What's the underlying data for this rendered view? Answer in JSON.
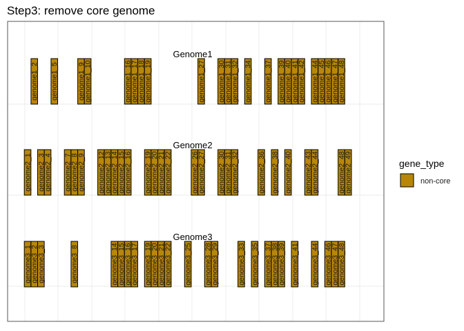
{
  "chart_data": {
    "type": "gene-arrangement",
    "title": "Step3: remove core genome",
    "fill_color": "#B8860B",
    "border_color": "#000000",
    "panel_border_color": "#555555",
    "grid_color": "#EBEBEB",
    "grid": true,
    "legend": {
      "title": "gene_type",
      "placement": "right",
      "entries": [
        {
          "label": "non-core",
          "color": "#B8860B"
        }
      ]
    },
    "tracks": [
      {
        "name": "Genome1",
        "genes": [
          {
            "label": "genome1_2",
            "pos": 2
          },
          {
            "label": "genome1_5",
            "pos": 5
          },
          {
            "label": "genome1_9",
            "pos": 9
          },
          {
            "label": "genome1_10",
            "pos": 10
          },
          {
            "label": "genome1_16",
            "pos": 16
          },
          {
            "label": "genome1_17",
            "pos": 17
          },
          {
            "label": "genome1_18",
            "pos": 18
          },
          {
            "label": "genome1_19",
            "pos": 19
          },
          {
            "label": "genome1_27",
            "pos": 27
          },
          {
            "label": "genome1_30",
            "pos": 30
          },
          {
            "label": "genome1_31",
            "pos": 31
          },
          {
            "label": "genome1_32",
            "pos": 32
          },
          {
            "label": "genome1_34",
            "pos": 34
          },
          {
            "label": "genome1_37",
            "pos": 37
          },
          {
            "label": "genome1_39",
            "pos": 39
          },
          {
            "label": "genome1_40",
            "pos": 40
          },
          {
            "label": "genome1_41",
            "pos": 41
          },
          {
            "label": "genome1_42",
            "pos": 42
          },
          {
            "label": "genome1_44",
            "pos": 44
          },
          {
            "label": "genome1_45",
            "pos": 45
          },
          {
            "label": "genome1_46",
            "pos": 46
          },
          {
            "label": "genome1_47",
            "pos": 47
          },
          {
            "label": "genome1_48",
            "pos": 48
          }
        ]
      },
      {
        "name": "Genome2",
        "genes": [
          {
            "label": "genome2_1",
            "pos": 1
          },
          {
            "label": "genome2_3",
            "pos": 3
          },
          {
            "label": "genome2_4",
            "pos": 4
          },
          {
            "label": "genome2_7",
            "pos": 7
          },
          {
            "label": "genome2_8",
            "pos": 8
          },
          {
            "label": "genome2_9",
            "pos": 9
          },
          {
            "label": "genome2_12",
            "pos": 12
          },
          {
            "label": "genome2_13",
            "pos": 13
          },
          {
            "label": "genome2_14",
            "pos": 14
          },
          {
            "label": "genome2_15",
            "pos": 15
          },
          {
            "label": "genome2_16",
            "pos": 16
          },
          {
            "label": "genome2_19",
            "pos": 19
          },
          {
            "label": "genome2_20",
            "pos": 20
          },
          {
            "label": "genome2_21",
            "pos": 21
          },
          {
            "label": "genome2_22",
            "pos": 22
          },
          {
            "label": "genome2_26",
            "pos": 26
          },
          {
            "label": "genome2_27",
            "pos": 27
          },
          {
            "label": "genome2_30",
            "pos": 30
          },
          {
            "label": "genome2_31",
            "pos": 31
          },
          {
            "label": "genome2_32",
            "pos": 32
          },
          {
            "label": "genome2_36",
            "pos": 36
          },
          {
            "label": "genome2_38",
            "pos": 38
          },
          {
            "label": "genome2_40",
            "pos": 40
          },
          {
            "label": "genome2_43",
            "pos": 43
          },
          {
            "label": "genome2_44",
            "pos": 44
          },
          {
            "label": "genome2_48",
            "pos": 48
          },
          {
            "label": "genome2_49",
            "pos": 49
          }
        ]
      },
      {
        "name": "Genome3",
        "genes": [
          {
            "label": "genome3_1",
            "pos": 1
          },
          {
            "label": "genome3_2",
            "pos": 2
          },
          {
            "label": "genome3_3",
            "pos": 3
          },
          {
            "label": "genome3_8",
            "pos": 8
          },
          {
            "label": "genome3_14",
            "pos": 14
          },
          {
            "label": "genome3_15",
            "pos": 15
          },
          {
            "label": "genome3_16",
            "pos": 16
          },
          {
            "label": "genome3_17",
            "pos": 17
          },
          {
            "label": "genome3_19",
            "pos": 19
          },
          {
            "label": "genome3_20",
            "pos": 20
          },
          {
            "label": "genome3_21",
            "pos": 21
          },
          {
            "label": "genome3_22",
            "pos": 22
          },
          {
            "label": "genome3_25",
            "pos": 25
          },
          {
            "label": "genome3_28",
            "pos": 28
          },
          {
            "label": "genome3_29",
            "pos": 29
          },
          {
            "label": "genome3_33",
            "pos": 33
          },
          {
            "label": "genome3_35",
            "pos": 35
          },
          {
            "label": "genome3_37",
            "pos": 37
          },
          {
            "label": "genome3_38",
            "pos": 38
          },
          {
            "label": "genome3_39",
            "pos": 39
          },
          {
            "label": "genome3_41",
            "pos": 41
          },
          {
            "label": "genome3_44",
            "pos": 44
          },
          {
            "label": "genome3_46",
            "pos": 46
          },
          {
            "label": "genome3_47",
            "pos": 47
          },
          {
            "label": "genome3_48",
            "pos": 48
          }
        ]
      }
    ]
  }
}
